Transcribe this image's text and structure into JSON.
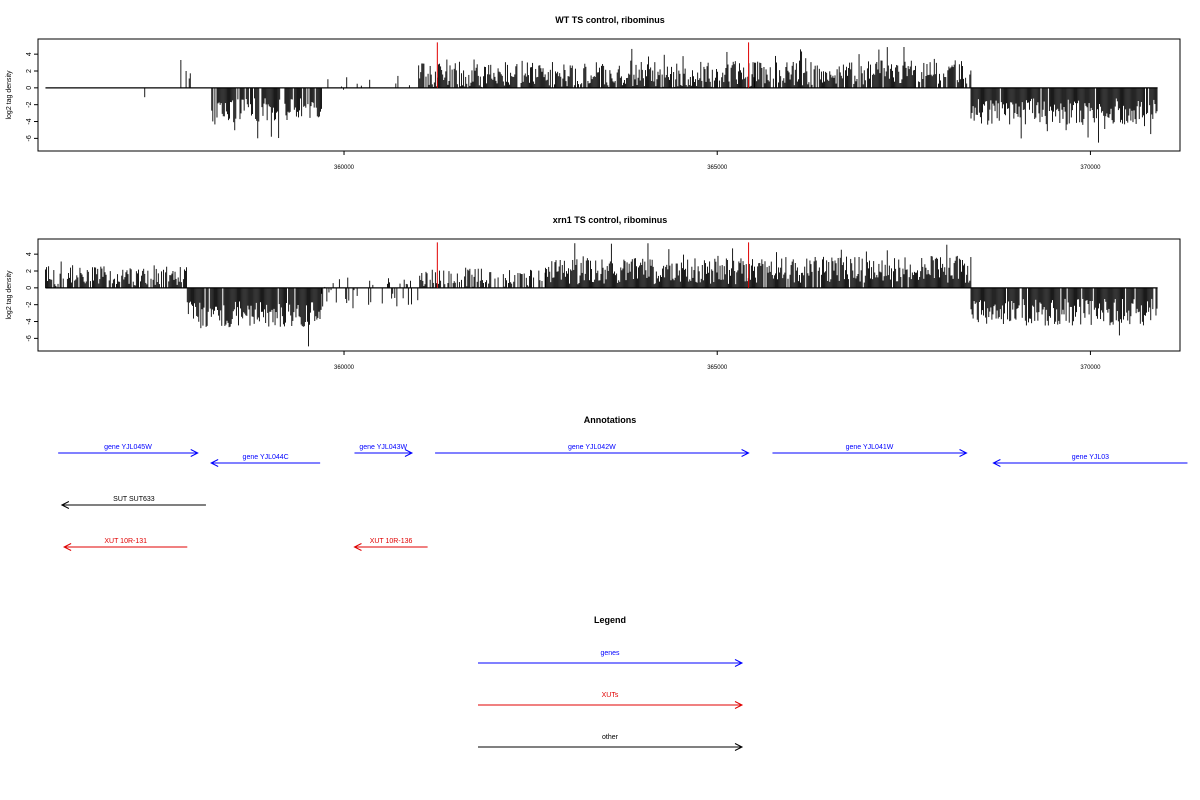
{
  "chart_data": [
    {
      "type": "bar",
      "title": "WT TS control, ribominus",
      "ylabel": "log2 tag density",
      "xlabel": "",
      "xlim": [
        355900,
        371200
      ],
      "ylim": [
        -7.5,
        5.8
      ],
      "x_ticks": [
        360000,
        365000,
        370000
      ],
      "x_tick_labels": [
        "360000",
        "365000",
        "370000"
      ],
      "y_ticks": [
        4,
        2,
        0,
        -2,
        -4,
        -6
      ],
      "y_tick_labels": [
        "4",
        "2",
        "0",
        "-2",
        "-4",
        "-6"
      ],
      "baseline": {
        "from": 356000,
        "to": 370900,
        "y": 0
      },
      "markers": [
        {
          "x": 361250,
          "color": "#e00000",
          "ymax": 5.4
        },
        {
          "x": 365420,
          "color": "#e00000",
          "ymax": 5.4
        }
      ],
      "profile": [
        {
          "from": 356000,
          "to": 357800,
          "mean": -0.8,
          "amp": 0.7,
          "density": 0.02
        },
        {
          "from": 357800,
          "to": 358200,
          "mean": 1.5,
          "amp": 0.8,
          "density": 0.35
        },
        {
          "from": 358200,
          "to": 359700,
          "mean": -2.6,
          "amp": 1.4,
          "density": 0.85
        },
        {
          "from": 359700,
          "to": 361000,
          "mean": 0.6,
          "amp": 1.0,
          "density": 0.15
        },
        {
          "from": 361000,
          "to": 365500,
          "mean": 1.6,
          "amp": 1.5,
          "density": 0.9
        },
        {
          "from": 365500,
          "to": 368400,
          "mean": 1.8,
          "amp": 1.5,
          "density": 0.8
        },
        {
          "from": 368400,
          "to": 370900,
          "mean": -2.8,
          "amp": 1.6,
          "density": 0.95
        }
      ],
      "grid": false
    },
    {
      "type": "bar",
      "title": "xrn1 TS control, ribominus",
      "ylabel": "log2 tag density",
      "xlabel": "",
      "xlim": [
        355900,
        371200
      ],
      "ylim": [
        -7.5,
        5.8
      ],
      "x_ticks": [
        360000,
        365000,
        370000
      ],
      "x_tick_labels": [
        "360000",
        "365000",
        "370000"
      ],
      "y_ticks": [
        4,
        2,
        0,
        -2,
        -4,
        -6
      ],
      "y_tick_labels": [
        "4",
        "2",
        "0",
        "-2",
        "-4",
        "-6"
      ],
      "baseline": {
        "from": 356000,
        "to": 370900,
        "y": 0
      },
      "markers": [
        {
          "x": 361250,
          "color": "#e00000",
          "ymax": 5.4
        },
        {
          "x": 365420,
          "color": "#e00000",
          "ymax": 5.4
        }
      ],
      "profile": [
        {
          "from": 356000,
          "to": 357900,
          "mean": 1.4,
          "amp": 1.2,
          "density": 0.8
        },
        {
          "from": 357900,
          "to": 359700,
          "mean": -3.2,
          "amp": 1.6,
          "density": 0.95
        },
        {
          "from": 359700,
          "to": 361000,
          "mean": -0.5,
          "amp": 1.8,
          "density": 0.5
        },
        {
          "from": 361000,
          "to": 362700,
          "mean": 1.2,
          "amp": 1.2,
          "density": 0.6
        },
        {
          "from": 362700,
          "to": 365500,
          "mean": 2.0,
          "amp": 1.6,
          "density": 1.0
        },
        {
          "from": 365500,
          "to": 368400,
          "mean": 2.2,
          "amp": 1.6,
          "density": 0.9
        },
        {
          "from": 368400,
          "to": 370900,
          "mean": -2.9,
          "amp": 1.6,
          "density": 0.95
        }
      ],
      "grid": false
    }
  ],
  "annotations": {
    "title": "Annotations",
    "items": [
      {
        "label": "gene YJL045W",
        "category": "genes",
        "from": 356170,
        "to": 358040,
        "direction": "right",
        "row": 0
      },
      {
        "label": "gene YJL044C",
        "category": "genes",
        "from": 358220,
        "to": 359680,
        "direction": "left",
        "row": 1
      },
      {
        "label": "gene YJL043W",
        "category": "genes",
        "from": 360140,
        "to": 360910,
        "direction": "right",
        "row": 0
      },
      {
        "label": "gene YJL042W",
        "category": "genes",
        "from": 361220,
        "to": 365420,
        "direction": "right",
        "row": 0
      },
      {
        "label": "gene YJL041W",
        "category": "genes",
        "from": 365740,
        "to": 368340,
        "direction": "right",
        "row": 0
      },
      {
        "label": "gene YJL03",
        "category": "genes",
        "from": 368700,
        "to": 371300,
        "direction": "left",
        "row": 1
      },
      {
        "label": "SUT SUT633",
        "category": "other",
        "from": 356220,
        "to": 358150,
        "direction": "left",
        "row": 2
      },
      {
        "label": "XUT 10R-131",
        "category": "XUTs",
        "from": 356250,
        "to": 357900,
        "direction": "left",
        "row": 3
      },
      {
        "label": "XUT 10R-136",
        "category": "XUTs",
        "from": 360140,
        "to": 361120,
        "direction": "left",
        "row": 3
      }
    ]
  },
  "legend": {
    "title": "Legend",
    "entries": [
      {
        "label": "genes",
        "color": "#0000ff"
      },
      {
        "label": "XUTs",
        "color": "#e00000"
      },
      {
        "label": "other",
        "color": "#000000"
      }
    ]
  },
  "colors": {
    "genes": "#0000ff",
    "XUTs": "#e00000",
    "other": "#000000",
    "bars": "#000000",
    "axis": "#000000"
  }
}
